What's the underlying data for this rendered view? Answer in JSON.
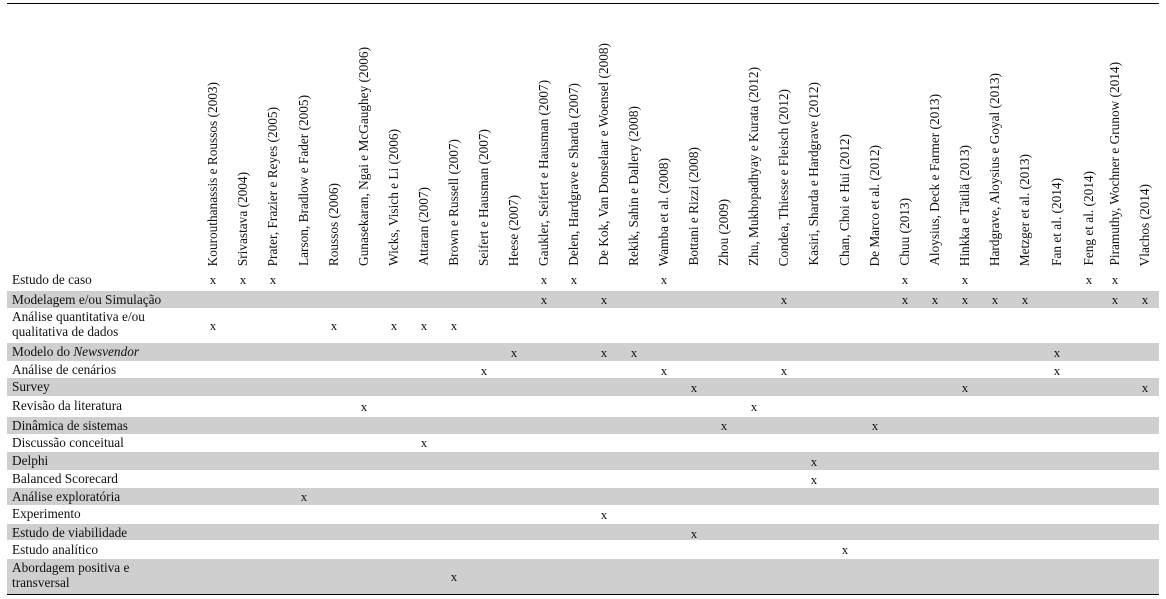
{
  "columns": [
    "Kourouthanassis e Roussos (2003)",
    "Srivastava (2004)",
    "Prater, Frazier e Reyes (2005)",
    "Larson, Bradlow e Fader (2005)",
    "Roussos (2006)",
    "Gunasekaran, Ngai e McGaughey (2006)",
    "Wicks, Visich e Li (2006)",
    "Attaran (2007)",
    "Brown e Russell (2007)",
    "Seifert e Hausman (2007)",
    "Heese (2007)",
    "Gaukler, Seifert e Hausman (2007)",
    "Delen, Hardgrave e Sharda (2007)",
    "De Kok, Van Donselaar e Woensel (2008)",
    "Rekik, Sahin e Dallery (2008)",
    "Wamba et al. (2008)",
    "Bottani e Rizzi (2008)",
    "Zhou (2009)",
    "Zhu, Mukhopadhyay e Kurata (2012)",
    "Condea, Thiesse e Fleisch (2012)",
    "Kasiri, Sharda e Hardgrave (2012)",
    "Chan, Choi e Hui (2012)",
    "De Marco et al. (2012)",
    "Chuu (2013)",
    "Aloysius, Deck e Farmer (2013)",
    "Hinkka e Tätilä (2013)",
    "Hardgrave, Aloysius e Goyal (2013)",
    "Metzger et al. (2013)",
    "Fan et al. (2014)",
    "Feng et al. (2014)",
    "Piramuthy, Wochner e Grunow (2014)",
    "Vlachos (2014)"
  ],
  "mark": "x",
  "rows": [
    {
      "label": "Estudo de caso",
      "marks": [
        0,
        1,
        2,
        11,
        12,
        15,
        23,
        25,
        29,
        30
      ]
    },
    {
      "label": "Modelagem e/ou Simulação",
      "marks": [
        11,
        13,
        19,
        23,
        24,
        25,
        26,
        27,
        30,
        31
      ]
    },
    {
      "label": "Análise quantitativa e/ou",
      "label2": "qualitativa de dados",
      "marks": [
        0,
        4,
        6,
        7,
        8
      ]
    },
    {
      "label": "Modelo do ",
      "label_em": "Newsvendor",
      "marks": [
        10,
        13,
        14,
        28
      ]
    },
    {
      "label": "Análise de cenários",
      "marks": [
        9,
        15,
        19,
        28
      ]
    },
    {
      "label": "Survey",
      "marks": [
        16,
        25,
        31
      ]
    },
    {
      "label": "Revisão da literatura",
      "marks": [
        5,
        18
      ]
    },
    {
      "label": "Dinâmica de sistemas",
      "marks": [
        17,
        22
      ]
    },
    {
      "label": "Discussão conceitual",
      "marks": [
        7
      ]
    },
    {
      "label": "Delphi",
      "marks": [
        20
      ]
    },
    {
      "label": "Balanced Scorecard",
      "marks": [
        20
      ]
    },
    {
      "label": "Análise exploratória",
      "marks": [
        3
      ]
    },
    {
      "label": "Experimento",
      "marks": [
        13
      ]
    },
    {
      "label": "Estudo de viabilidade",
      "marks": [
        16
      ]
    },
    {
      "label": "Estudo analítico",
      "marks": [
        21
      ]
    },
    {
      "label": "Abordagem positiva e",
      "label2": "transversal",
      "marks": [
        8
      ]
    }
  ],
  "colors": {
    "shade": "#cfcfcf",
    "text": "#111111",
    "rule": "#000000"
  }
}
